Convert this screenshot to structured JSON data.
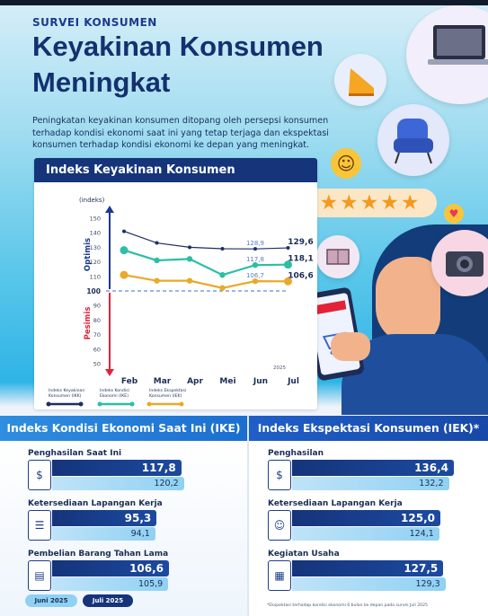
{
  "header": {
    "kicker": "SURVEI KONSUMEN",
    "title_line1": "Keyakinan Konsumen",
    "title_line2": "Meningkat",
    "intro": "Peningkatan keyakinan konsumen ditopang oleh persepsi konsumen terhadap kondisi ekonomi saat ini yang tetap terjaga dan ekspektasi konsumen terhadap kondisi ekonomi ke depan yang meningkat."
  },
  "colors": {
    "navy": "#15347a",
    "ikk_line": "#1b2e66",
    "ike_line": "#2bbfa6",
    "iek_line": "#e9a92a",
    "threshold": "#5b8fd6",
    "optimis": "#1b3a8c",
    "pesimis": "#e22237"
  },
  "chart_data": {
    "type": "line",
    "title": "Indeks Keyakinan Konsumen",
    "ylabel": "(indeks)",
    "ylim": [
      50,
      150
    ],
    "yticks": [
      50,
      60,
      70,
      80,
      90,
      100,
      110,
      120,
      130,
      140,
      150
    ],
    "threshold": 100,
    "threshold_label": "100",
    "zone_labels": {
      "upper": "Optimis",
      "lower": "Pesimis"
    },
    "year_label": "2025",
    "categories": [
      "Feb",
      "Mar",
      "Apr",
      "Mei",
      "Jun",
      "Jul"
    ],
    "series": [
      {
        "name": "Indeks Keyakinan Konsumen (IKK)",
        "values": [
          141,
          133,
          130,
          129,
          128.9,
          129.6
        ]
      },
      {
        "name": "Indeks Kondisi Ekonomi (IKE)",
        "values": [
          128,
          121,
          122,
          111,
          117.8,
          118.1
        ]
      },
      {
        "name": "Indeks Ekspektasi Konsumen (IEK)",
        "values": [
          111,
          107,
          107,
          102,
          106.7,
          106.6
        ]
      }
    ],
    "data_labels": [
      {
        "series": 0,
        "index": 4,
        "text": "128,9",
        "bold": false
      },
      {
        "series": 0,
        "index": 5,
        "text": "129,6",
        "bold": true
      },
      {
        "series": 1,
        "index": 4,
        "text": "117,8",
        "bold": false
      },
      {
        "series": 1,
        "index": 5,
        "text": "118,1",
        "bold": true
      },
      {
        "series": 2,
        "index": 4,
        "text": "106,7",
        "bold": false
      },
      {
        "series": 2,
        "index": 5,
        "text": "106,6",
        "bold": true
      }
    ],
    "legend_lines": [
      [
        "Indeks Keyakinan",
        "Konsumen (IKK)"
      ],
      [
        "Indeks Kondisi",
        "Ekonomi (IKE)"
      ],
      [
        "Indeks Ekspektasi",
        "Konsumen (IEK)"
      ]
    ]
  },
  "ike_panel": {
    "title": "Indeks Kondisi Ekonomi Saat Ini (IKE)",
    "items": [
      {
        "label": "Penghasilan Saat Ini",
        "icon": "money-hand",
        "july": 117.8,
        "june": 120.2,
        "july_text": "117,8",
        "june_text": "120,2"
      },
      {
        "label": "Ketersediaan Lapangan Kerja",
        "icon": "job-document",
        "july": 95.3,
        "june": 94.1,
        "july_text": "95,3",
        "june_text": "94,1"
      },
      {
        "label": "Pembelian Barang Tahan Lama",
        "icon": "appliance",
        "july": 106.6,
        "june": 105.9,
        "july_text": "106,6",
        "june_text": "105,9"
      }
    ]
  },
  "iek_panel": {
    "title": "Indeks Ekspektasi Konsumen (IEK)*",
    "items": [
      {
        "label": "Penghasilan",
        "icon": "money-bag",
        "july": 136.4,
        "june": 132.2,
        "july_text": "136,4",
        "june_text": "132,2"
      },
      {
        "label": "Ketersediaan Lapangan Kerja",
        "icon": "worker",
        "july": 125.0,
        "june": 124.1,
        "july_text": "125,0",
        "june_text": "124,1"
      },
      {
        "label": "Kegiatan Usaha",
        "icon": "store",
        "july": 127.5,
        "june": 129.3,
        "july_text": "127,5",
        "june_text": "129,3"
      }
    ],
    "footnote": "*Ekspektasi terhadap kondisi ekonomi 6 bulan ke depan pada survei Juli 2025"
  },
  "legend": {
    "june": "Juni 2025",
    "july": "Juli 2025"
  }
}
